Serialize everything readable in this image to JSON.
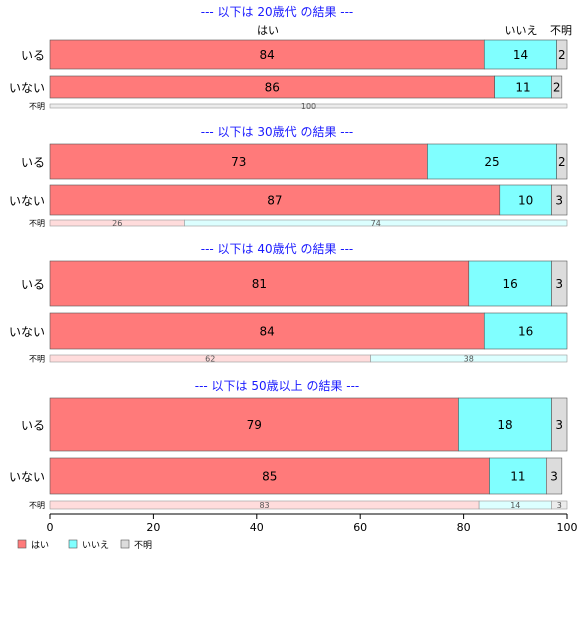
{
  "chart_data": {
    "type": "bar",
    "orientation": "horizontal",
    "stacked": true,
    "xlim": [
      0,
      100
    ],
    "x_ticks": [
      0,
      20,
      40,
      60,
      80,
      100
    ],
    "series": [
      {
        "name": "はい",
        "color": "#ff7a7a"
      },
      {
        "name": "いいえ",
        "color": "#80ffff"
      },
      {
        "name": "不明",
        "color": "#dcdcdc"
      }
    ],
    "legend": {
      "placement": "bottom-left",
      "items": [
        "はい",
        "いいえ",
        "不明"
      ]
    },
    "top_labels": [
      "はい",
      "いいえ",
      "不明"
    ],
    "panels": [
      {
        "title": "--- 以下は 20歳代 の結果 ---",
        "rows": [
          {
            "label": "いる",
            "values": [
              84,
              14,
              2
            ]
          },
          {
            "label": "いない",
            "values": [
              86,
              11,
              2
            ]
          },
          {
            "label": "不明",
            "values": [
              0,
              0,
              100
            ],
            "thin": true
          }
        ]
      },
      {
        "title": "--- 以下は 30歳代 の結果 ---",
        "rows": [
          {
            "label": "いる",
            "values": [
              73,
              25,
              2
            ]
          },
          {
            "label": "いない",
            "values": [
              87,
              10,
              3
            ]
          },
          {
            "label": "不明",
            "values": [
              26,
              74,
              0
            ],
            "thin": true
          }
        ]
      },
      {
        "title": "--- 以下は 40歳代 の結果 ---",
        "rows": [
          {
            "label": "いる",
            "values": [
              81,
              16,
              3
            ]
          },
          {
            "label": "いない",
            "values": [
              84,
              16,
              0
            ]
          },
          {
            "label": "不明",
            "values": [
              62,
              38,
              0
            ],
            "thin": true
          }
        ]
      },
      {
        "title": "--- 以下は 50歳以上 の結果 ---",
        "rows": [
          {
            "label": "いる",
            "values": [
              79,
              18,
              3
            ]
          },
          {
            "label": "いない",
            "values": [
              85,
              11,
              3
            ]
          },
          {
            "label": "不明",
            "values": [
              83,
              14,
              3
            ],
            "thin": true
          }
        ]
      }
    ]
  }
}
